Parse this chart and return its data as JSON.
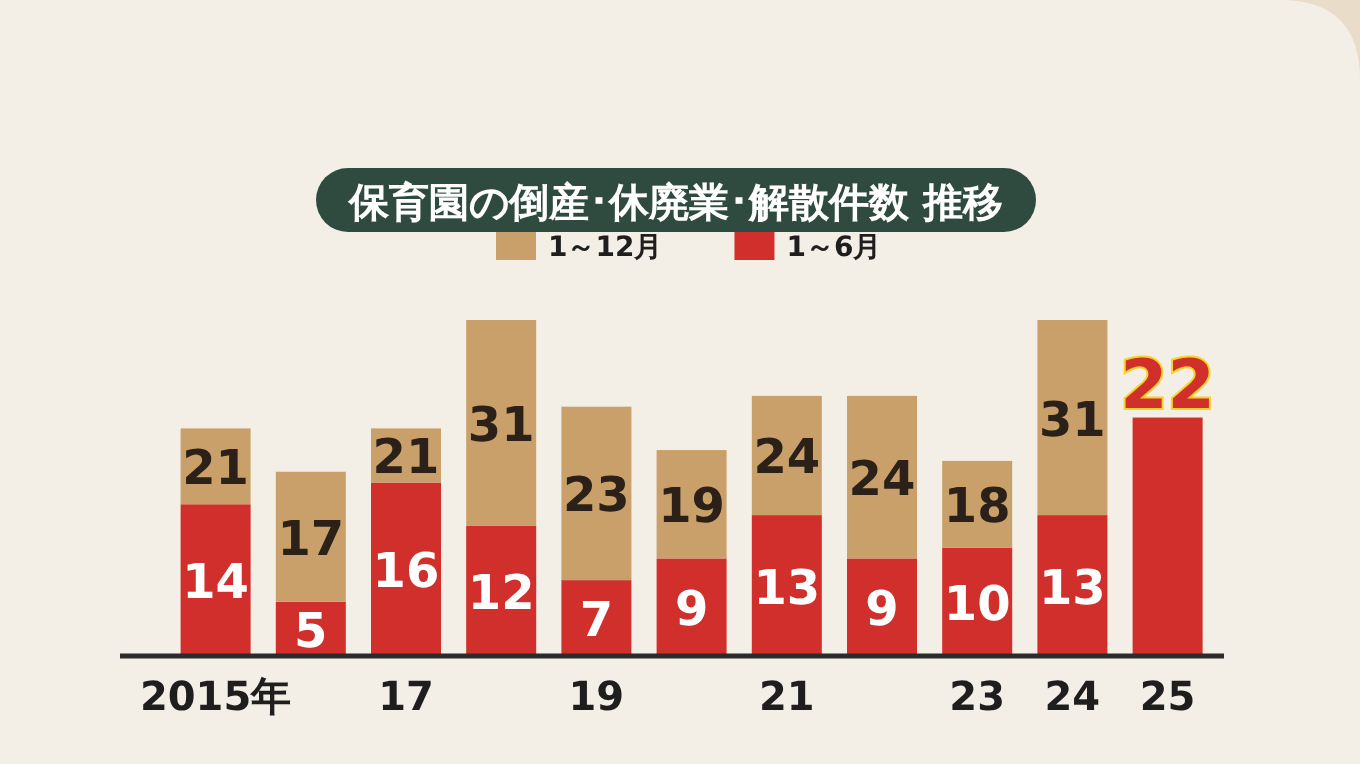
{
  "chart_data": {
    "type": "bar",
    "title": "保育園の倒産･休廃業･解散件数 推移",
    "legend": "top",
    "stacked": true,
    "categories": [
      "2015年",
      null,
      "17",
      null,
      "19",
      null,
      "21",
      null,
      "23",
      "24",
      "25"
    ],
    "series": [
      {
        "name": "1～6月",
        "color": "#d02f2b",
        "values": [
          14,
          5,
          16,
          12,
          7,
          9,
          13,
          9,
          10,
          13,
          22
        ],
        "value_labels": [
          "14",
          "5",
          "16",
          "12",
          "7",
          "9",
          "13",
          "9",
          "10",
          "13",
          "22"
        ]
      },
      {
        "name": "1～12月",
        "color": "#c9a06a",
        "values": [
          7,
          12,
          5,
          19,
          16,
          10,
          11,
          15,
          8,
          18,
          null
        ]
      }
    ],
    "totals": [
      "21",
      "17",
      "21",
      "31",
      "23",
      "19",
      "24",
      "24",
      "18",
      "31",
      null
    ]
  }
}
